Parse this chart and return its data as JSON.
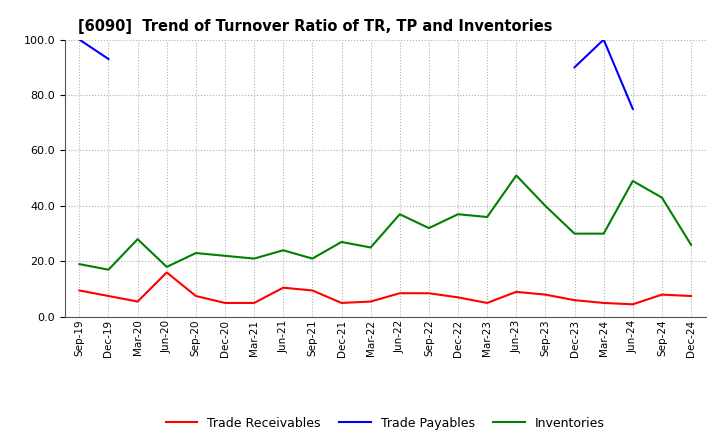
{
  "title": "[6090]  Trend of Turnover Ratio of TR, TP and Inventories",
  "x_labels": [
    "Sep-19",
    "Dec-19",
    "Mar-20",
    "Jun-20",
    "Sep-20",
    "Dec-20",
    "Mar-21",
    "Jun-21",
    "Sep-21",
    "Dec-21",
    "Mar-22",
    "Jun-22",
    "Sep-22",
    "Dec-22",
    "Mar-23",
    "Jun-23",
    "Sep-23",
    "Dec-23",
    "Mar-24",
    "Jun-24",
    "Sep-24",
    "Dec-24"
  ],
  "trade_receivables": [
    9.5,
    7.5,
    5.5,
    16.0,
    7.5,
    5.0,
    5.0,
    10.5,
    9.5,
    5.0,
    5.5,
    8.5,
    8.5,
    7.0,
    5.0,
    9.0,
    8.0,
    6.0,
    5.0,
    4.5,
    8.0,
    7.5
  ],
  "trade_payables_seg1": {
    "x": [
      0,
      1
    ],
    "y": [
      100.0,
      93.0
    ]
  },
  "trade_payables_seg2": {
    "x": [
      17,
      18,
      19
    ],
    "y": [
      90.0,
      100.0,
      75.0
    ]
  },
  "inventories": [
    19.0,
    17.0,
    28.0,
    18.0,
    23.0,
    22.0,
    21.0,
    24.0,
    21.0,
    27.0,
    25.0,
    37.0,
    32.0,
    37.0,
    36.0,
    51.0,
    40.0,
    30.0,
    30.0,
    49.0,
    43.0,
    26.0
  ],
  "ylim": [
    0.0,
    100.0
  ],
  "yticks": [
    0.0,
    20.0,
    40.0,
    60.0,
    80.0,
    100.0
  ],
  "colors": {
    "trade_receivables": "#ff0000",
    "trade_payables": "#0000ff",
    "inventories": "#008000"
  },
  "background_color": "#ffffff",
  "grid_color": "#b0b0b0",
  "legend_labels": [
    "Trade Receivables",
    "Trade Payables",
    "Inventories"
  ]
}
